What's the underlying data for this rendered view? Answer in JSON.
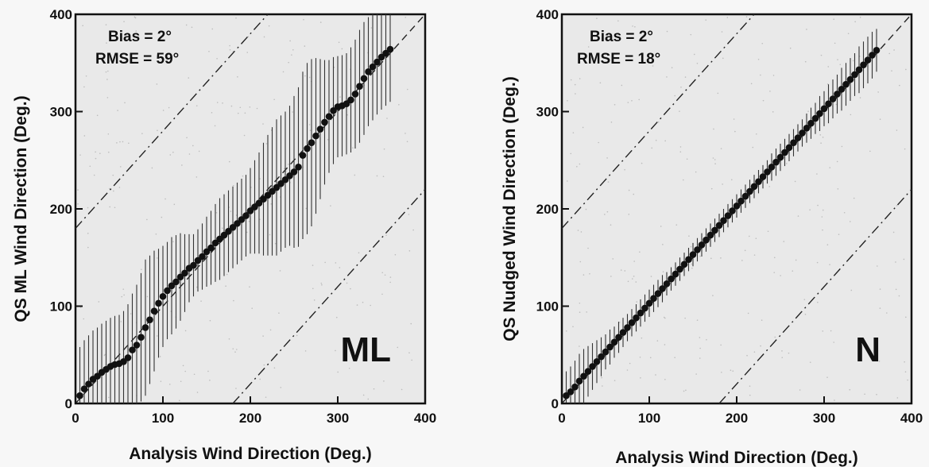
{
  "chart_data": [
    {
      "type": "scatter",
      "panel_label": "ML",
      "xlabel": "Analysis Wind Direction (Deg.)",
      "ylabel": "QS ML Wind Direction (Deg.)",
      "xlim": [
        0,
        400
      ],
      "ylim": [
        0,
        400
      ],
      "xticks": [
        "0",
        "100",
        "200",
        "300",
        "400"
      ],
      "yticks": [
        "0",
        "100",
        "200",
        "300",
        "400"
      ],
      "annotations": [
        "Bias = 2°",
        "RMSE = 59°"
      ],
      "reference_lines": [
        {
          "style": "dashed",
          "slope": 1,
          "intercept": 0
        },
        {
          "style": "dash-dot",
          "slope": 1,
          "intercept": 180
        },
        {
          "style": "dash-dot",
          "slope": 1,
          "intercept": -180
        }
      ],
      "x": [
        5,
        10,
        15,
        20,
        25,
        30,
        35,
        40,
        45,
        50,
        55,
        60,
        65,
        70,
        75,
        80,
        85,
        90,
        95,
        100,
        105,
        110,
        115,
        120,
        125,
        130,
        135,
        140,
        145,
        150,
        155,
        160,
        165,
        170,
        175,
        180,
        185,
        190,
        195,
        200,
        205,
        210,
        215,
        220,
        225,
        230,
        235,
        240,
        245,
        250,
        255,
        260,
        265,
        270,
        275,
        280,
        285,
        290,
        295,
        300,
        305,
        310,
        315,
        320,
        325,
        330,
        335,
        340,
        345,
        350,
        355,
        360
      ],
      "y": [
        8,
        15,
        20,
        25,
        28,
        32,
        35,
        38,
        40,
        41,
        43,
        47,
        55,
        60,
        68,
        78,
        86,
        95,
        103,
        110,
        116,
        121,
        125,
        130,
        134,
        139,
        142,
        147,
        151,
        156,
        160,
        165,
        169,
        173,
        177,
        181,
        185,
        189,
        193,
        198,
        202,
        206,
        210,
        214,
        218,
        222,
        226,
        230,
        234,
        238,
        243,
        255,
        262,
        268,
        275,
        282,
        289,
        295,
        301,
        305,
        306,
        308,
        312,
        318,
        326,
        334,
        341,
        346,
        351,
        356,
        360,
        364
      ],
      "err": [
        50,
        50,
        50,
        50,
        50,
        50,
        50,
        50,
        50,
        50,
        52,
        55,
        58,
        62,
        66,
        70,
        66,
        62,
        56,
        52,
        50,
        50,
        48,
        45,
        40,
        35,
        32,
        32,
        34,
        36,
        38,
        40,
        42,
        42,
        42,
        42,
        42,
        42,
        42,
        44,
        48,
        52,
        58,
        62,
        66,
        70,
        70,
        70,
        72,
        78,
        82,
        86,
        88,
        86,
        80,
        72,
        64,
        58,
        55,
        52,
        52,
        52,
        54,
        56,
        58,
        58,
        56,
        55,
        54,
        54,
        54,
        54
      ]
    },
    {
      "type": "scatter",
      "panel_label": "N",
      "xlabel": "Analysis Wind Direction (Deg.)",
      "ylabel": "QS Nudged Wind Direction (Deg.)",
      "xlim": [
        0,
        400
      ],
      "ylim": [
        0,
        400
      ],
      "xticks": [
        "0",
        "100",
        "200",
        "300",
        "400"
      ],
      "yticks": [
        "0",
        "100",
        "200",
        "300",
        "400"
      ],
      "annotations": [
        "Bias = 2°",
        "RMSE = 18°"
      ],
      "reference_lines": [
        {
          "style": "dashed",
          "slope": 1,
          "intercept": 0
        },
        {
          "style": "dash-dot",
          "slope": 1,
          "intercept": 180
        },
        {
          "style": "dash-dot",
          "slope": 1,
          "intercept": -180
        }
      ],
      "x": [
        5,
        10,
        15,
        20,
        25,
        30,
        35,
        40,
        45,
        50,
        55,
        60,
        65,
        70,
        75,
        80,
        85,
        90,
        95,
        100,
        105,
        110,
        115,
        120,
        125,
        130,
        135,
        140,
        145,
        150,
        155,
        160,
        165,
        170,
        175,
        180,
        185,
        190,
        195,
        200,
        205,
        210,
        215,
        220,
        225,
        230,
        235,
        240,
        245,
        250,
        255,
        260,
        265,
        270,
        275,
        280,
        285,
        290,
        295,
        300,
        305,
        310,
        315,
        320,
        325,
        330,
        335,
        340,
        345,
        350,
        355,
        360
      ],
      "y": [
        8,
        12,
        17,
        23,
        28,
        33,
        38,
        43,
        48,
        53,
        58,
        63,
        68,
        73,
        78,
        83,
        88,
        93,
        98,
        103,
        108,
        113,
        118,
        123,
        128,
        133,
        138,
        143,
        148,
        153,
        158,
        163,
        168,
        173,
        178,
        183,
        188,
        193,
        198,
        203,
        208,
        213,
        218,
        223,
        228,
        233,
        238,
        243,
        248,
        253,
        258,
        263,
        268,
        273,
        278,
        283,
        288,
        293,
        298,
        303,
        308,
        313,
        318,
        323,
        328,
        333,
        338,
        343,
        348,
        353,
        358,
        363
      ],
      "err": [
        25,
        26,
        27,
        28,
        28,
        26,
        24,
        22,
        20,
        18,
        18,
        16,
        16,
        15,
        14,
        14,
        14,
        14,
        14,
        14,
        14,
        14,
        14,
        12,
        12,
        12,
        12,
        12,
        12,
        12,
        12,
        12,
        12,
        12,
        12,
        12,
        12,
        12,
        12,
        12,
        12,
        12,
        12,
        12,
        12,
        12,
        12,
        14,
        14,
        14,
        14,
        14,
        14,
        14,
        14,
        15,
        16,
        16,
        18,
        18,
        20,
        20,
        20,
        22,
        22,
        22,
        22,
        24,
        24,
        24,
        24,
        22
      ]
    }
  ]
}
